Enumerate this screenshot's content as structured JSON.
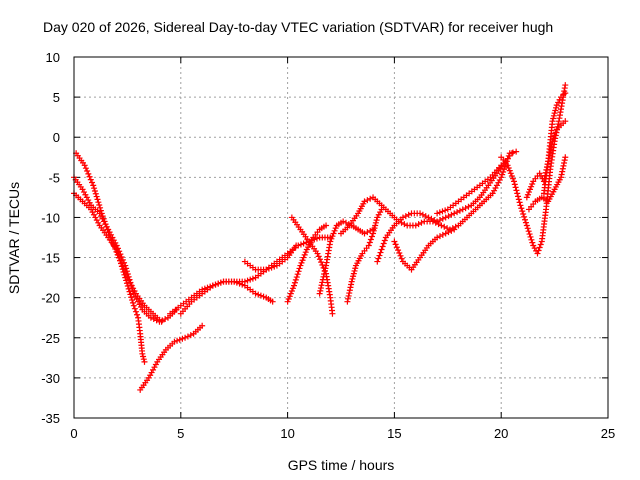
{
  "chart_data": {
    "type": "scatter",
    "title": "Day 020 of 2026, Sidereal Day-to-day VTEC variation (SDTVAR) for receiver hugh",
    "xlabel": "GPS time / hours",
    "ylabel": "SDTVAR / TECUs",
    "xlim": [
      0,
      25
    ],
    "ylim": [
      -35,
      10
    ],
    "xticks": [
      0,
      5,
      10,
      15,
      20,
      25
    ],
    "yticks": [
      10,
      5,
      0,
      -5,
      -10,
      -15,
      -20,
      -25,
      -30,
      -35
    ],
    "grid": true,
    "marker": "+",
    "color": "#ff0000",
    "series": [
      {
        "name": "satellite tracks",
        "tracks": [
          [
            [
              0.0,
              -5.0
            ],
            [
              0.4,
              -6.5
            ],
            [
              0.8,
              -8.5
            ],
            [
              1.2,
              -9.5
            ],
            [
              1.6,
              -11.5
            ],
            [
              2.0,
              -13.5
            ],
            [
              2.4,
              -16.0
            ],
            [
              2.8,
              -19.5
            ],
            [
              3.2,
              -21.5
            ],
            [
              3.6,
              -22.5
            ],
            [
              4.0,
              -23.0
            ],
            [
              4.4,
              -22.5
            ],
            [
              4.8,
              -21.5
            ]
          ],
          [
            [
              0.1,
              -2.0
            ],
            [
              0.5,
              -3.5
            ],
            [
              0.9,
              -6.0
            ],
            [
              1.3,
              -9.5
            ],
            [
              1.7,
              -12.5
            ],
            [
              2.1,
              -15.0
            ],
            [
              2.5,
              -17.5
            ],
            [
              2.9,
              -19.5
            ],
            [
              3.3,
              -21.0
            ],
            [
              3.7,
              -22.0
            ],
            [
              4.1,
              -23.0
            ]
          ],
          [
            [
              0.0,
              -7.0
            ],
            [
              0.4,
              -8.0
            ],
            [
              0.8,
              -9.0
            ],
            [
              1.2,
              -11.0
            ],
            [
              1.6,
              -12.5
            ],
            [
              2.0,
              -14.0
            ],
            [
              2.4,
              -17.5
            ],
            [
              2.8,
              -21.0
            ],
            [
              3.0,
              -22.5
            ],
            [
              3.1,
              -24.5
            ],
            [
              3.2,
              -27.0
            ],
            [
              3.3,
              -28.0
            ]
          ],
          [
            [
              3.1,
              -31.5
            ],
            [
              3.5,
              -30.0
            ],
            [
              3.9,
              -28.0
            ],
            [
              4.3,
              -26.5
            ],
            [
              4.7,
              -25.5
            ],
            [
              5.2,
              -25.0
            ],
            [
              5.6,
              -24.5
            ],
            [
              6.0,
              -23.5
            ]
          ],
          [
            [
              4.5,
              -22.0
            ],
            [
              5.0,
              -21.0
            ],
            [
              5.5,
              -20.0
            ],
            [
              6.0,
              -19.0
            ],
            [
              6.5,
              -18.5
            ],
            [
              7.0,
              -18.0
            ],
            [
              7.5,
              -18.0
            ],
            [
              8.0,
              -18.5
            ],
            [
              8.5,
              -19.5
            ],
            [
              9.0,
              -20.0
            ],
            [
              9.3,
              -20.5
            ]
          ],
          [
            [
              5.0,
              -22.0
            ],
            [
              5.5,
              -20.5
            ],
            [
              6.0,
              -19.5
            ],
            [
              6.5,
              -18.5
            ],
            [
              7.0,
              -18.0
            ],
            [
              7.5,
              -18.0
            ],
            [
              8.0,
              -18.0
            ],
            [
              8.5,
              -17.5
            ],
            [
              9.0,
              -16.5
            ],
            [
              9.5,
              -15.5
            ],
            [
              10.0,
              -14.5
            ],
            [
              10.5,
              -13.5
            ],
            [
              11.0,
              -13.0
            ],
            [
              11.5,
              -12.5
            ],
            [
              12.0,
              -12.5
            ]
          ],
          [
            [
              8.0,
              -15.5
            ],
            [
              8.5,
              -16.5
            ],
            [
              9.0,
              -16.5
            ],
            [
              9.5,
              -16.0
            ],
            [
              10.0,
              -15.0
            ],
            [
              10.4,
              -13.5
            ]
          ],
          [
            [
              10.0,
              -20.5
            ],
            [
              10.3,
              -18.5
            ],
            [
              10.6,
              -16.0
            ],
            [
              10.9,
              -14.0
            ],
            [
              11.2,
              -12.5
            ],
            [
              11.5,
              -11.5
            ],
            [
              11.8,
              -11.0
            ]
          ],
          [
            [
              10.2,
              -10.0
            ],
            [
              10.6,
              -11.5
            ],
            [
              11.0,
              -13.0
            ],
            [
              11.4,
              -14.5
            ],
            [
              11.8,
              -17.0
            ],
            [
              12.0,
              -20.0
            ],
            [
              12.1,
              -22.0
            ]
          ],
          [
            [
              11.5,
              -19.5
            ],
            [
              11.8,
              -16.0
            ],
            [
              12.0,
              -13.0
            ],
            [
              12.3,
              -11.0
            ],
            [
              12.6,
              -10.5
            ],
            [
              13.0,
              -11.0
            ],
            [
              13.3,
              -11.5
            ],
            [
              13.6,
              -12.0
            ],
            [
              14.0,
              -11.5
            ]
          ],
          [
            [
              12.5,
              -12.0
            ],
            [
              12.9,
              -11.0
            ],
            [
              13.3,
              -9.5
            ],
            [
              13.6,
              -8.0
            ],
            [
              14.0,
              -7.5
            ],
            [
              14.4,
              -8.5
            ],
            [
              14.8,
              -9.5
            ],
            [
              15.2,
              -10.5
            ],
            [
              15.6,
              -11.0
            ],
            [
              16.0,
              -11.0
            ],
            [
              16.4,
              -10.5
            ],
            [
              16.8,
              -10.5
            ],
            [
              17.2,
              -11.0
            ],
            [
              17.6,
              -11.5
            ],
            [
              18.0,
              -11.0
            ],
            [
              18.4,
              -10.0
            ],
            [
              18.8,
              -9.0
            ],
            [
              19.2,
              -8.0
            ],
            [
              19.6,
              -7.0
            ],
            [
              20.0,
              -5.0
            ],
            [
              20.4,
              -2.0
            ],
            [
              20.7,
              -1.8
            ]
          ],
          [
            [
              12.8,
              -20.5
            ],
            [
              13.0,
              -18.0
            ],
            [
              13.2,
              -16.0
            ],
            [
              13.5,
              -14.5
            ],
            [
              13.8,
              -13.5
            ],
            [
              14.0,
              -12.0
            ],
            [
              14.2,
              -10.0
            ],
            [
              14.4,
              -9.0
            ]
          ],
          [
            [
              14.2,
              -15.5
            ],
            [
              14.4,
              -14.0
            ],
            [
              14.6,
              -12.5
            ],
            [
              15.0,
              -11.0
            ],
            [
              15.4,
              -10.0
            ],
            [
              15.8,
              -9.5
            ],
            [
              16.2,
              -9.5
            ],
            [
              16.6,
              -10.0
            ],
            [
              17.0,
              -10.5
            ],
            [
              17.4,
              -10.0
            ],
            [
              17.8,
              -9.5
            ],
            [
              18.2,
              -9.0
            ],
            [
              18.6,
              -8.5
            ],
            [
              19.0,
              -7.5
            ],
            [
              19.4,
              -6.0
            ],
            [
              19.8,
              -4.5
            ],
            [
              20.2,
              -3.0
            ],
            [
              20.5,
              -2.0
            ]
          ],
          [
            [
              15.0,
              -13.0
            ],
            [
              15.4,
              -15.5
            ],
            [
              15.8,
              -16.5
            ],
            [
              16.2,
              -15.0
            ],
            [
              16.6,
              -13.5
            ],
            [
              17.0,
              -12.5
            ],
            [
              17.4,
              -12.0
            ],
            [
              17.8,
              -11.5
            ]
          ],
          [
            [
              17.0,
              -9.5
            ],
            [
              17.5,
              -9.0
            ],
            [
              18.0,
              -8.0
            ],
            [
              18.5,
              -7.0
            ],
            [
              19.0,
              -6.0
            ],
            [
              19.5,
              -5.0
            ],
            [
              20.0,
              -3.5
            ]
          ],
          [
            [
              20.0,
              -2.5
            ],
            [
              20.3,
              -3.5
            ],
            [
              20.6,
              -5.5
            ],
            [
              20.9,
              -8.5
            ],
            [
              21.2,
              -11.0
            ],
            [
              21.5,
              -13.5
            ],
            [
              21.7,
              -14.5
            ],
            [
              21.9,
              -13.0
            ],
            [
              22.1,
              -9.0
            ],
            [
              22.3,
              -4.0
            ],
            [
              22.5,
              -0.5
            ],
            [
              22.7,
              2.0
            ],
            [
              22.9,
              5.0
            ],
            [
              23.0,
              6.5
            ]
          ],
          [
            [
              21.2,
              -7.5
            ],
            [
              21.5,
              -5.5
            ],
            [
              21.8,
              -4.5
            ],
            [
              22.0,
              -5.5
            ],
            [
              22.2,
              -3.0
            ],
            [
              22.4,
              -0.5
            ],
            [
              22.6,
              1.0
            ],
            [
              22.8,
              1.5
            ],
            [
              23.0,
              2.0
            ]
          ],
          [
            [
              21.3,
              -9.0
            ],
            [
              21.6,
              -8.0
            ],
            [
              21.9,
              -7.5
            ],
            [
              22.2,
              -8.0
            ],
            [
              22.5,
              -6.5
            ],
            [
              22.8,
              -5.0
            ],
            [
              23.0,
              -2.5
            ]
          ],
          [
            [
              22.0,
              -7.0
            ],
            [
              22.2,
              -3.0
            ],
            [
              22.4,
              2.0
            ],
            [
              22.6,
              4.0
            ],
            [
              22.8,
              5.0
            ],
            [
              23.0,
              5.5
            ]
          ]
        ]
      }
    ]
  }
}
